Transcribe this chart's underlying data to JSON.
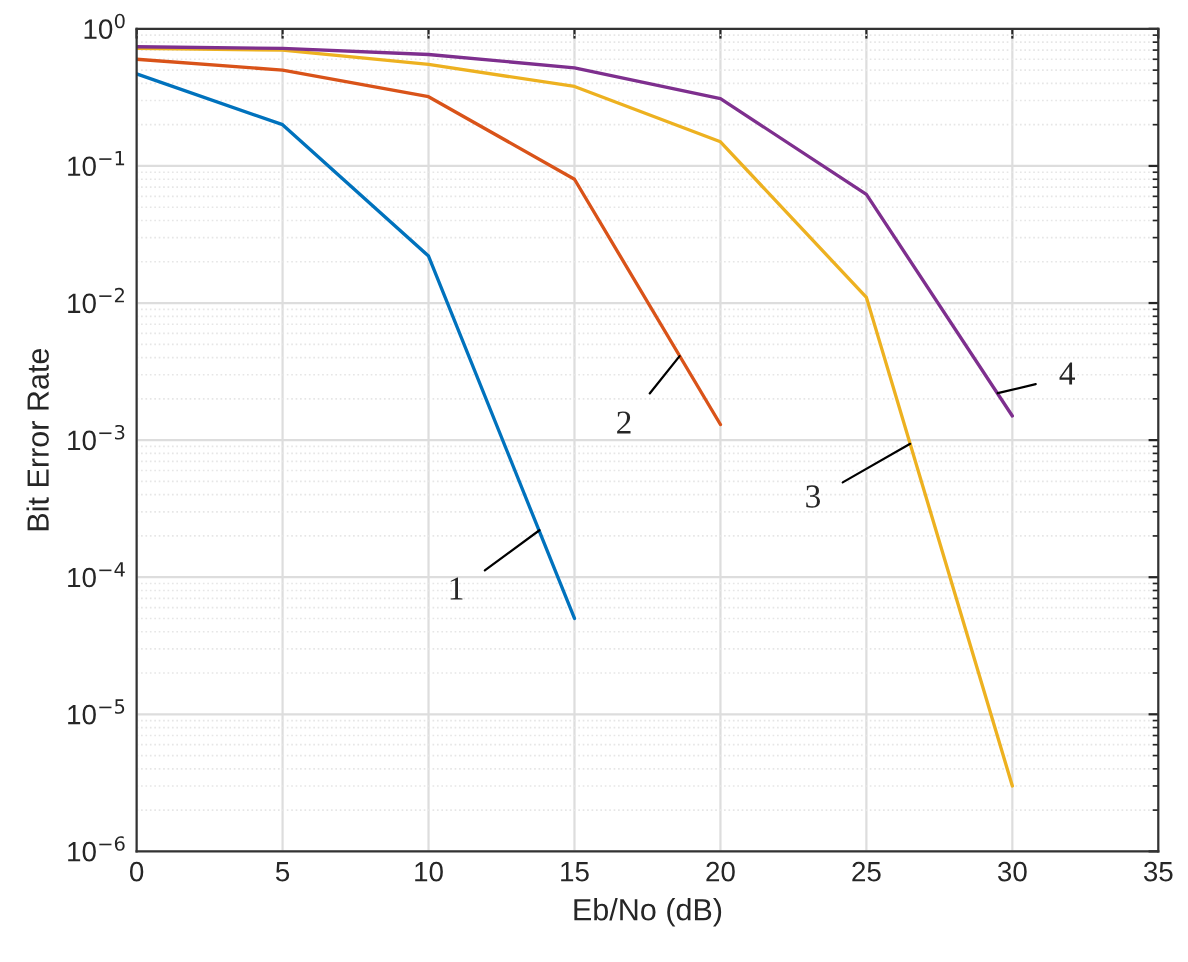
{
  "chart_data": {
    "type": "line",
    "xlabel": "Eb/No (dB)",
    "ylabel": "Bit Error Rate",
    "log": true,
    "xlim": [
      0,
      35
    ],
    "xticks": [
      0,
      5,
      10,
      15,
      20,
      25,
      30,
      35
    ],
    "ylim": [
      1e-06,
      1
    ],
    "yticks": [
      {
        "value": 1e-06,
        "label": "10$^{−6}$"
      },
      {
        "value": 1e-05,
        "label": "10$^{−5}$"
      },
      {
        "value": 0.0001,
        "label": "10$^{−4}$"
      },
      {
        "value": 0.001,
        "label": "10$^{−3}$"
      },
      {
        "value": 0.01,
        "label": "10$^{−2}$"
      },
      {
        "value": 0.1,
        "label": "10$^{−1}$"
      },
      {
        "value": 1,
        "label": "10$^{0}$"
      }
    ],
    "grid": true,
    "marker": "none",
    "line_style": "solid",
    "series": [
      {
        "color": "#0072bd",
        "x": [
          0,
          5,
          10,
          15
        ],
        "values": [
          0.47,
          0.2,
          0.022,
          5e-05
        ]
      },
      {
        "color": "#d95319",
        "x": [
          0,
          5,
          10,
          15,
          20
        ],
        "values": [
          0.6,
          0.5,
          0.32,
          0.08,
          0.0013
        ]
      },
      {
        "color": "#edb120",
        "x": [
          0,
          5,
          10,
          15,
          20,
          25,
          30
        ],
        "values": [
          0.72,
          0.7,
          0.55,
          0.38,
          0.15,
          0.011,
          3e-06
        ]
      },
      {
        "color": "#7e2f8e",
        "x": [
          0,
          5,
          10,
          15,
          20,
          25,
          30
        ],
        "values": [
          0.74,
          0.72,
          0.65,
          0.52,
          0.31,
          0.062,
          0.0015
        ]
      }
    ],
    "annotations": [
      {
        "text": "1",
        "x": 13.8,
        "y": 0.00022
      },
      {
        "text": "2",
        "x": 18.6,
        "y": 0.0041
      },
      {
        "text": "3",
        "x": 26.5,
        "y": 0.00094
      },
      {
        "text": "4",
        "x": 29.5,
        "y": 0.0022
      }
    ]
  }
}
